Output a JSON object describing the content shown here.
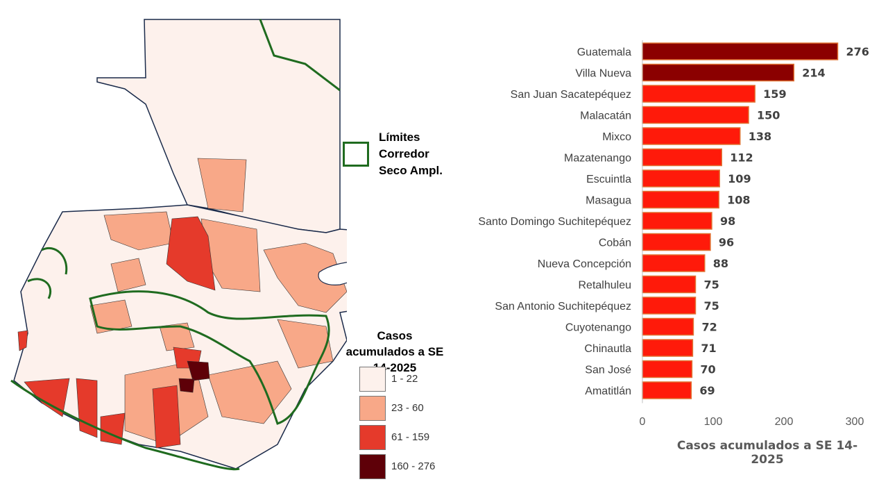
{
  "map": {
    "corridor_legend_label": "Límites\nCorredor\nSeco Ampl.",
    "corridor_color": "#1f6b1f",
    "cases_legend_title": "Casos acumulados a SE 14-2025",
    "classes": [
      {
        "label": "1 - 22",
        "color": "#fdf1ec"
      },
      {
        "label": "23 - 60",
        "color": "#f8a888"
      },
      {
        "label": "61 - 159",
        "color": "#e53a2b"
      },
      {
        "label": "160 - 276",
        "color": "#5e0008"
      }
    ]
  },
  "chart_data": {
    "type": "bar",
    "orientation": "horizontal",
    "categories": [
      "Guatemala",
      "Villa Nueva",
      "San Juan Sacatepéquez",
      "Malacatán",
      "Mixco",
      "Mazatenango",
      "Escuintla",
      "Masagua",
      "Santo Domingo Suchitepéquez",
      "Cobán",
      "Nueva Concepción",
      "Retalhuleu",
      "San Antonio Suchitepéquez",
      "Cuyotenango",
      "Chinautla",
      "San José",
      "Amatitlán"
    ],
    "values": [
      276,
      214,
      159,
      150,
      138,
      112,
      109,
      108,
      98,
      96,
      88,
      75,
      75,
      72,
      71,
      70,
      69
    ],
    "data_labels": [
      "276",
      "214",
      "159",
      "150",
      "138",
      "112",
      "109",
      "108",
      "98",
      "96",
      "88",
      "75",
      "75",
      "72",
      "71",
      "70",
      "69"
    ],
    "xlim": [
      0,
      300
    ],
    "x_ticks": [
      "0",
      "100",
      "200",
      "300"
    ],
    "xlabel": "Casos acumulados a SE 14-2025",
    "title": "",
    "ylabel": "",
    "grid": false,
    "colors": {
      "top": "#8b0000",
      "other": "#ff1a0a",
      "border": "#e07030"
    }
  }
}
